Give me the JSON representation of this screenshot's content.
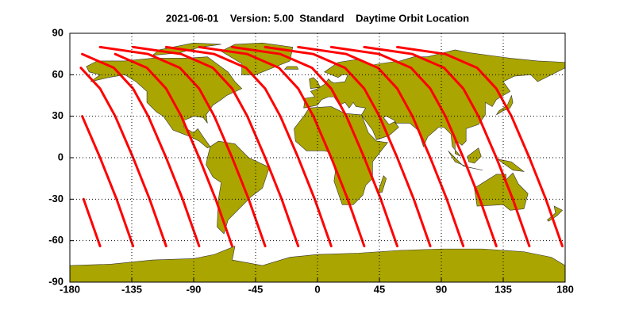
{
  "chart_data": {
    "type": "line",
    "title": "2021-06-01    Version: 5.00  Standard    Daytime Orbit Location",
    "color": "#ff0000",
    "xlim": [
      -180,
      180
    ],
    "xticks": [
      -180,
      -135,
      -90,
      -45,
      0,
      45,
      90,
      135,
      180
    ],
    "ylim": [
      -90,
      90
    ],
    "yticks": [
      -90,
      -60,
      -30,
      0,
      30,
      60,
      90
    ],
    "grid": true,
    "series": [
      {
        "x": [
          -158,
          -170
        ],
        "y": [
          -64,
          -30
        ]
      },
      {
        "x": [
          -134,
          -146,
          -158,
          -171
        ],
        "y": [
          -64,
          -30,
          0,
          30
        ]
      },
      {
        "x": [
          -110,
          -122,
          -134,
          -147,
          -158,
          -172
        ],
        "y": [
          -64,
          -30,
          0,
          30,
          50,
          65
        ]
      },
      {
        "x": [
          -86,
          -98,
          -110,
          -123,
          -134,
          -148,
          -171
        ],
        "y": [
          -64,
          -30,
          0,
          30,
          50,
          65,
          75
        ]
      },
      {
        "x": [
          -62,
          -74,
          -86,
          -99,
          -110,
          -124,
          -147
        ],
        "y": [
          -64,
          -30,
          0,
          30,
          50,
          65,
          75
        ]
      },
      {
        "x": [
          -38,
          -50,
          -62,
          -75,
          -86,
          -100,
          -123,
          -158
        ],
        "y": [
          -64,
          -30,
          0,
          30,
          50,
          65,
          75,
          80
        ]
      },
      {
        "x": [
          -14,
          -26,
          -38,
          -51,
          -62,
          -76,
          -99,
          -134
        ],
        "y": [
          -64,
          -30,
          0,
          30,
          50,
          65,
          75,
          80
        ]
      },
      {
        "x": [
          10,
          -2,
          -14,
          -27,
          -38,
          -52,
          -75,
          -110
        ],
        "y": [
          -64,
          -30,
          0,
          30,
          50,
          65,
          75,
          80
        ]
      },
      {
        "x": [
          34,
          22,
          10,
          -3,
          -14,
          -28,
          -51,
          -86
        ],
        "y": [
          -64,
          -30,
          0,
          30,
          50,
          65,
          75,
          80
        ]
      },
      {
        "x": [
          58,
          46,
          34,
          21,
          10,
          -4,
          -27,
          -62
        ],
        "y": [
          -64,
          -30,
          0,
          30,
          50,
          65,
          75,
          80
        ]
      },
      {
        "x": [
          82,
          70,
          58,
          45,
          34,
          20,
          -3,
          -38
        ],
        "y": [
          -64,
          -30,
          0,
          30,
          50,
          65,
          75,
          80
        ]
      },
      {
        "x": [
          106,
          94,
          82,
          69,
          58,
          44,
          21,
          -14
        ],
        "y": [
          -64,
          -30,
          0,
          30,
          50,
          65,
          75,
          80
        ]
      },
      {
        "x": [
          130,
          118,
          106,
          93,
          82,
          68,
          45,
          10
        ],
        "y": [
          -64,
          -30,
          0,
          30,
          50,
          65,
          75,
          80
        ]
      },
      {
        "x": [
          154,
          142,
          130,
          117,
          106,
          92,
          69,
          34
        ],
        "y": [
          -64,
          -30,
          0,
          30,
          50,
          65,
          75,
          80
        ]
      },
      {
        "x": [
          178,
          166,
          154,
          141,
          130,
          116,
          93,
          58
        ],
        "y": [
          -64,
          -30,
          0,
          30,
          50,
          65,
          75,
          80
        ]
      }
    ]
  }
}
